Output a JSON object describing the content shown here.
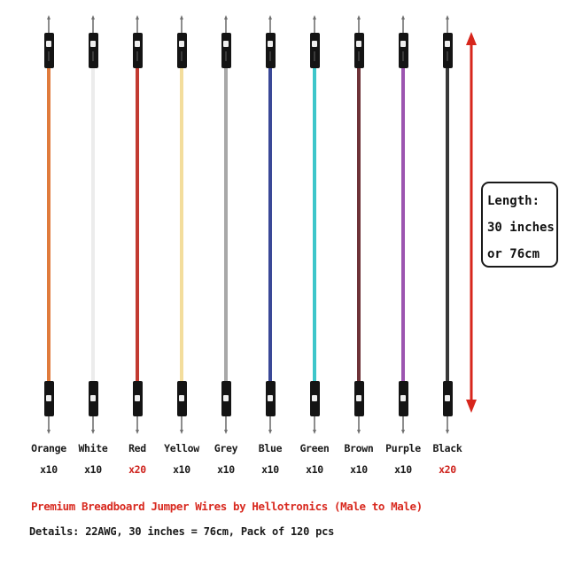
{
  "product": {
    "wires": [
      {
        "name": "Orange",
        "count": "x10",
        "color": "#E07B3C",
        "count_color": "#1a1a1a"
      },
      {
        "name": "White",
        "count": "x10",
        "color": "#ECECEC",
        "count_color": "#1a1a1a"
      },
      {
        "name": "Red",
        "count": "x20",
        "color": "#C23A31",
        "count_color": "#CE221C"
      },
      {
        "name": "Yellow",
        "count": "x10",
        "color": "#F3DD9C",
        "count_color": "#1a1a1a"
      },
      {
        "name": "Grey",
        "count": "x10",
        "color": "#A8A8A8",
        "count_color": "#1a1a1a"
      },
      {
        "name": "Blue",
        "count": "x10",
        "color": "#3A4897",
        "count_color": "#1a1a1a"
      },
      {
        "name": "Green",
        "count": "x10",
        "color": "#3EC6CA",
        "count_color": "#1a1a1a"
      },
      {
        "name": "Brown",
        "count": "x10",
        "color": "#6E3238",
        "count_color": "#1a1a1a"
      },
      {
        "name": "Purple",
        "count": "x10",
        "color": "#9C55B0",
        "count_color": "#1a1a1a"
      },
      {
        "name": "Black",
        "count": "x20",
        "color": "#383838",
        "count_color": "#CE221C"
      }
    ],
    "length_annotation": {
      "line1": "Length:",
      "line2": "30 inches",
      "line3": "or 76cm"
    },
    "title": "Premium Breadboard Jumper Wires by Hellotronics (Male to Male)",
    "details": "Details: 22AWG, 30 inches = 76cm, Pack of 120 pcs",
    "colors": {
      "accent_red": "#D7261C",
      "title_red": "#D8291F",
      "text_black": "#1A1A1A"
    }
  }
}
